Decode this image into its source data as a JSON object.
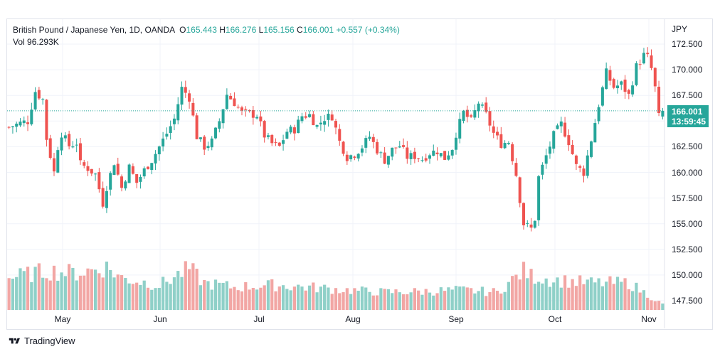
{
  "legend": {
    "symbol": "British Pound / Japanese Yen, 1D, OANDA",
    "o_label": "O",
    "o_value": "165.443",
    "h_label": "H",
    "h_value": "166.276",
    "l_label": "L",
    "l_value": "165.156",
    "c_label": "C",
    "c_value": "166.001",
    "change": "+0.557 (+0.34%)",
    "vol_label": "Vol",
    "vol_value": "96.293K"
  },
  "axis": {
    "currency": "JPY",
    "y_ticks": [
      "172.500",
      "170.000",
      "167.500",
      "165.000",
      "162.500",
      "160.000",
      "157.500",
      "155.000",
      "152.500",
      "150.000",
      "147.500"
    ],
    "x_ticks": [
      "May",
      "Jun",
      "Jul",
      "Aug",
      "Sep",
      "Oct",
      "Nov"
    ]
  },
  "last_price": {
    "value": "166.001",
    "countdown": "13:59:45"
  },
  "brand": {
    "name": "TradingView"
  },
  "colors": {
    "up": "#26a69a",
    "down": "#ef5350",
    "vol_up": "#8fd0c8",
    "vol_down": "#f2a6a4",
    "grid": "#f0f3fa",
    "price_line": "#26a69a"
  },
  "chart_data": {
    "type": "candlestick",
    "title": "British Pound / Japanese Yen, 1D, OANDA",
    "ylim": [
      147.0,
      173.5
    ],
    "y_unit": "JPY",
    "x_start": "Apr 12",
    "x_end": "Nov 5",
    "month_labels": [
      "May",
      "Jun",
      "Jul",
      "Aug",
      "Sep",
      "Oct",
      "Nov"
    ],
    "close_path": [
      [
        0,
        164.4
      ],
      [
        3,
        164.8
      ],
      [
        5,
        165.0
      ],
      [
        7,
        167.9
      ],
      [
        9,
        167.1
      ],
      [
        10,
        163.3
      ],
      [
        12,
        160.0
      ],
      [
        13,
        162.5
      ],
      [
        14,
        163.8
      ],
      [
        16,
        162.6
      ],
      [
        18,
        162.9
      ],
      [
        19,
        160.8
      ],
      [
        21,
        160.4
      ],
      [
        23,
        159.8
      ],
      [
        25,
        157.0
      ],
      [
        26,
        158.6
      ],
      [
        28,
        161.0
      ],
      [
        30,
        158.5
      ],
      [
        32,
        160.5
      ],
      [
        34,
        159.0
      ],
      [
        36,
        160.2
      ],
      [
        38,
        161.2
      ],
      [
        40,
        162.5
      ],
      [
        42,
        163.8
      ],
      [
        44,
        165.2
      ],
      [
        46,
        168.2
      ],
      [
        48,
        167.3
      ],
      [
        50,
        163.5
      ],
      [
        52,
        162.5
      ],
      [
        54,
        163.0
      ],
      [
        56,
        165.0
      ],
      [
        58,
        167.6
      ],
      [
        60,
        166.8
      ],
      [
        62,
        165.8
      ],
      [
        64,
        165.7
      ],
      [
        66,
        165.6
      ],
      [
        68,
        163.6
      ],
      [
        70,
        162.8
      ],
      [
        72,
        162.5
      ],
      [
        74,
        164.0
      ],
      [
        76,
        164.2
      ],
      [
        78,
        165.5
      ],
      [
        80,
        165.6
      ],
      [
        82,
        164.5
      ],
      [
        84,
        165.3
      ],
      [
        86,
        165.5
      ],
      [
        88,
        163.0
      ],
      [
        90,
        161.5
      ],
      [
        92,
        161.8
      ],
      [
        94,
        162.5
      ],
      [
        96,
        163.5
      ],
      [
        98,
        162.2
      ],
      [
        100,
        161.2
      ],
      [
        102,
        162.2
      ],
      [
        104,
        162.6
      ],
      [
        106,
        161.5
      ],
      [
        108,
        161.6
      ],
      [
        110,
        161.3
      ],
      [
        112,
        161.9
      ],
      [
        114,
        162.1
      ],
      [
        116,
        161.4
      ],
      [
        118,
        162.4
      ],
      [
        119,
        163.8
      ],
      [
        121,
        165.8
      ],
      [
        123,
        165.0
      ],
      [
        125,
        166.8
      ],
      [
        127,
        165.6
      ],
      [
        129,
        163.8
      ],
      [
        131,
        162.8
      ],
      [
        133,
        163.0
      ],
      [
        135,
        159.8
      ],
      [
        137,
        155.0
      ],
      [
        139,
        154.5
      ],
      [
        140,
        155.5
      ],
      [
        141,
        159.5
      ],
      [
        143,
        161.6
      ],
      [
        145,
        163.6
      ],
      [
        147,
        164.7
      ],
      [
        149,
        163.0
      ],
      [
        151,
        160.6
      ],
      [
        153,
        160.0
      ],
      [
        155,
        163.2
      ],
      [
        157,
        166.6
      ],
      [
        159,
        169.7
      ],
      [
        161,
        168.3
      ],
      [
        163,
        168.6
      ],
      [
        165,
        167.5
      ],
      [
        167,
        170.3
      ],
      [
        169,
        171.4
      ],
      [
        170,
        171.2
      ],
      [
        171,
        170.1
      ],
      [
        172,
        168.2
      ],
      [
        173,
        165.4
      ],
      [
        174,
        166.0
      ]
    ],
    "volume_ylim": [
      0,
      100
    ],
    "volume_profile": [
      [
        0,
        45
      ],
      [
        10,
        55
      ],
      [
        18,
        52
      ],
      [
        26,
        60
      ],
      [
        30,
        45
      ],
      [
        40,
        35
      ],
      [
        48,
        58
      ],
      [
        52,
        38
      ],
      [
        60,
        32
      ],
      [
        70,
        35
      ],
      [
        80,
        32
      ],
      [
        90,
        28
      ],
      [
        100,
        25
      ],
      [
        110,
        26
      ],
      [
        120,
        28
      ],
      [
        130,
        25
      ],
      [
        137,
        55
      ],
      [
        139,
        48
      ],
      [
        145,
        42
      ],
      [
        155,
        38
      ],
      [
        165,
        38
      ],
      [
        174,
        8
      ]
    ]
  }
}
